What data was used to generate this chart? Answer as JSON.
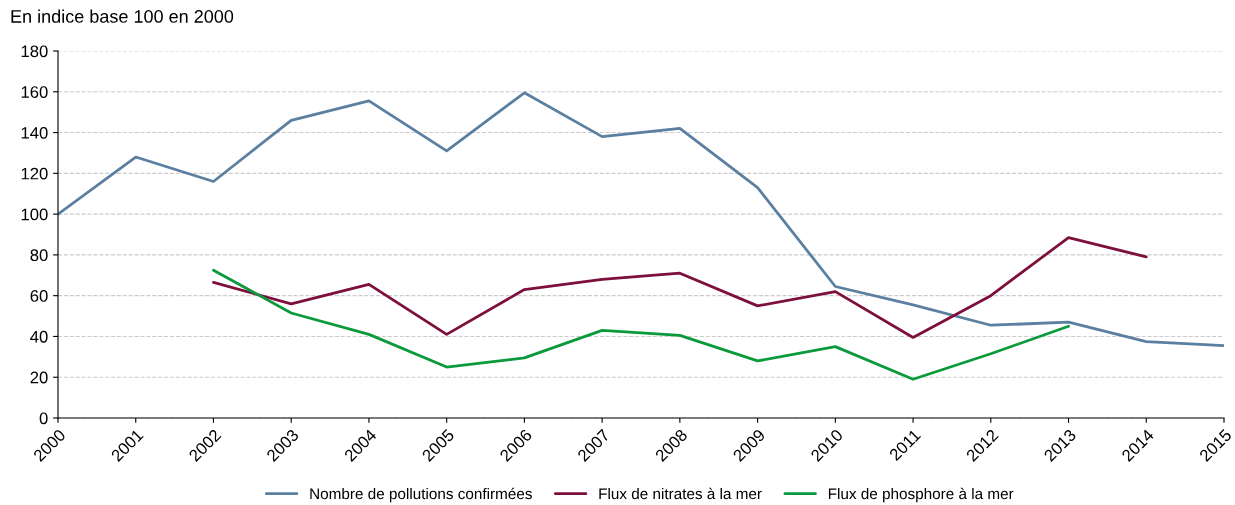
{
  "chart_data": {
    "type": "line",
    "subtitle": "En indice base 100 en 2000",
    "x": [
      2000,
      2001,
      2002,
      2003,
      2004,
      2005,
      2006,
      2007,
      2008,
      2009,
      2010,
      2011,
      2012,
      2013,
      2014,
      2015
    ],
    "series": [
      {
        "name": "Nombre de pollutions confirmées",
        "color": "#5b7fa0",
        "values": [
          100,
          128,
          116,
          146,
          155.5,
          131,
          159.5,
          138,
          142,
          113,
          64.5,
          55.5,
          45.5,
          47,
          37.5,
          35.5
        ]
      },
      {
        "name": "Flux de nitrates à la mer",
        "color": "#7d0f3d",
        "values": [
          null,
          null,
          66.5,
          56,
          65.5,
          41,
          63,
          68,
          71,
          55,
          62,
          39.5,
          60,
          88.5,
          79,
          null
        ]
      },
      {
        "name": "Flux de phosphore à la mer",
        "color": "#0a9a3c",
        "values": [
          null,
          null,
          72.5,
          51.5,
          41,
          25,
          29.5,
          43,
          40.5,
          28,
          35,
          19,
          31.5,
          45,
          null,
          null
        ]
      }
    ],
    "xlim": [
      2000,
      2015
    ],
    "xticks": [
      2000,
      2001,
      2002,
      2003,
      2004,
      2005,
      2006,
      2007,
      2008,
      2009,
      2010,
      2011,
      2012,
      2013,
      2014,
      2015
    ],
    "ylim": [
      0,
      180
    ],
    "yticks": [
      0,
      20,
      40,
      60,
      80,
      100,
      120,
      140,
      160,
      180
    ],
    "grid": "y",
    "legend": "bottom",
    "marker": "none",
    "line_style": "solid"
  }
}
